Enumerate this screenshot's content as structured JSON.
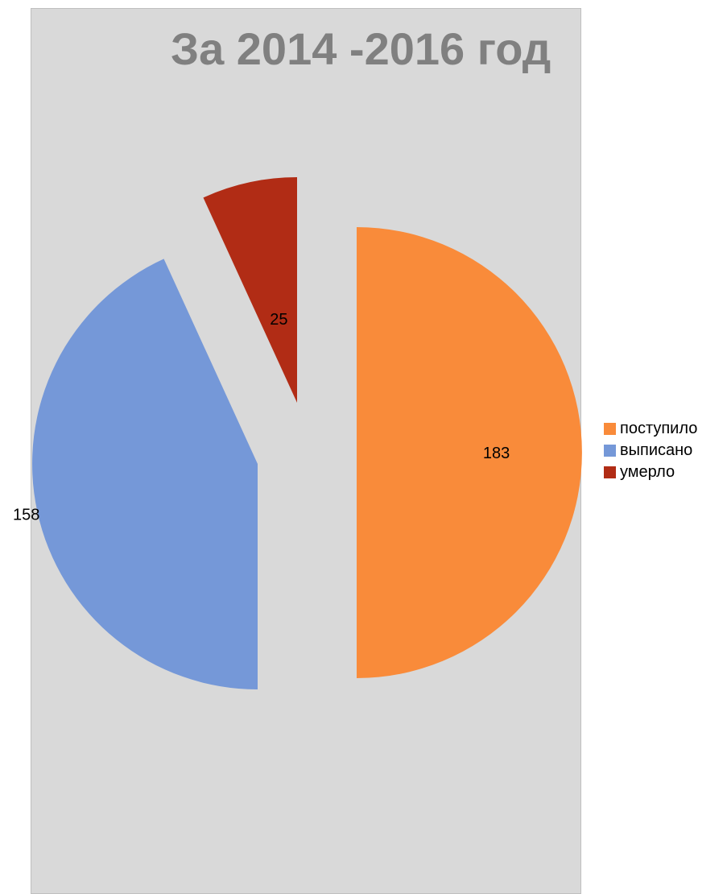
{
  "title": "За 2014 -2016 год",
  "chart_data": {
    "type": "pie",
    "title": "За 2014 -2016 год",
    "labels": [
      "поступило",
      "выписано",
      "умерло"
    ],
    "values": [
      183,
      158,
      25
    ],
    "data_labels": [
      "183",
      "158",
      "25"
    ],
    "colors": [
      "#f98b3a",
      "#7598d8",
      "#b12c15"
    ],
    "exploded": true,
    "legend_position": "right"
  }
}
